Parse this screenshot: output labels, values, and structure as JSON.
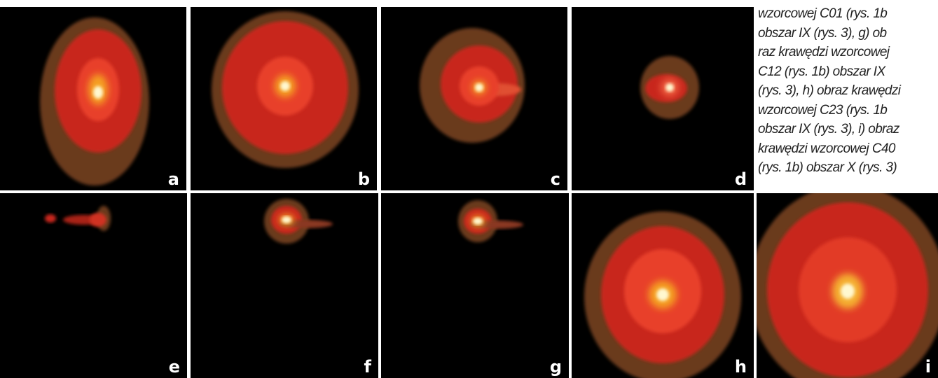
{
  "caption_lines": [
    "wzorcowej C01 (rys. 1b",
    "obszar IX (rys. 3), g) ob",
    "raz krawędzi wzorcowej",
    "C12 (rys. 1b) obszar IX",
    "(rys. 3), h) obraz krawędzi",
    "wzorcowej C23 (rys. 1b",
    "obszar IX (rys. 3), i) obraz",
    "krawędzi wzorcowej C40",
    "(rys. 1b) obszar X (rys. 3)"
  ],
  "panels": [
    "a",
    "b",
    "c",
    "d",
    "e",
    "f",
    "g",
    "h",
    "i"
  ]
}
